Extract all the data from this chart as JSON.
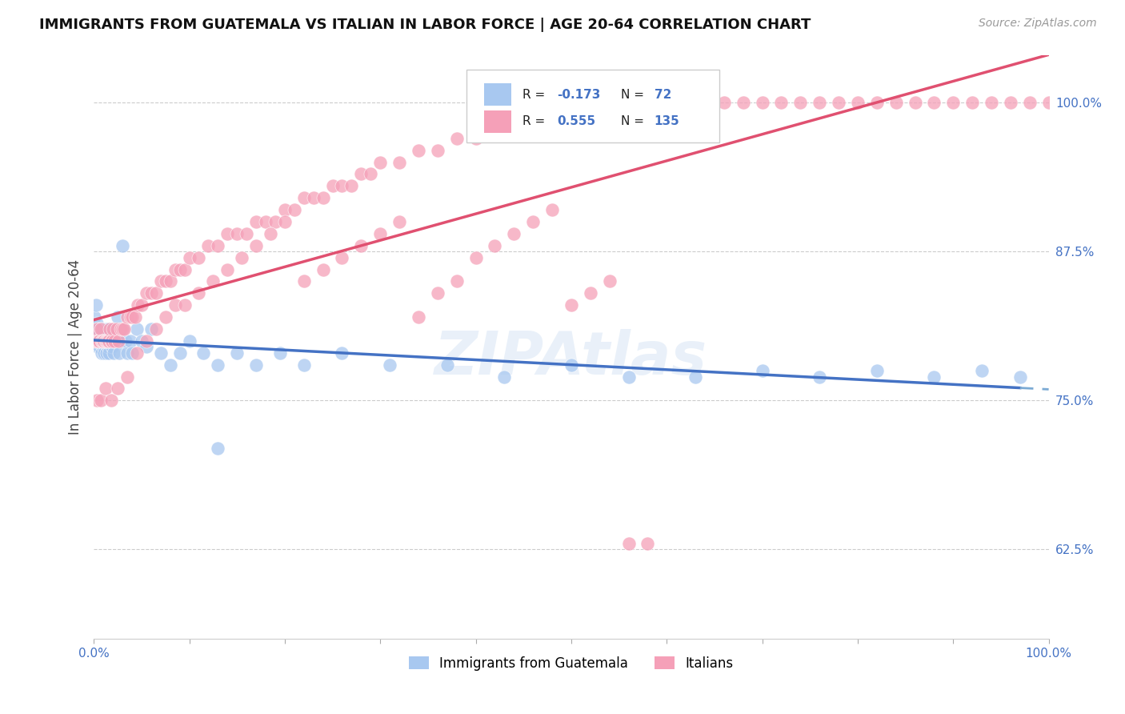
{
  "title": "IMMIGRANTS FROM GUATEMALA VS ITALIAN IN LABOR FORCE | AGE 20-64 CORRELATION CHART",
  "source": "Source: ZipAtlas.com",
  "ylabel": "In Labor Force | Age 20-64",
  "xlim": [
    0.0,
    1.0
  ],
  "ylim": [
    0.55,
    1.04
  ],
  "y_ticks": [
    0.625,
    0.75,
    0.875,
    1.0
  ],
  "y_tick_labels": [
    "62.5%",
    "75.0%",
    "87.5%",
    "100.0%"
  ],
  "guatemala_color": "#a8c8f0",
  "italian_color": "#f5a0b8",
  "guatemala_R": -0.173,
  "guatemala_N": 72,
  "italian_R": 0.555,
  "italian_N": 135,
  "legend_label_1": "Immigrants from Guatemala",
  "legend_label_2": "Italians",
  "guatemala_x": [
    0.001,
    0.002,
    0.002,
    0.003,
    0.003,
    0.004,
    0.004,
    0.005,
    0.005,
    0.006,
    0.006,
    0.007,
    0.007,
    0.008,
    0.008,
    0.009,
    0.009,
    0.01,
    0.01,
    0.011,
    0.011,
    0.012,
    0.013,
    0.013,
    0.014,
    0.015,
    0.015,
    0.016,
    0.017,
    0.018,
    0.019,
    0.02,
    0.021,
    0.022,
    0.023,
    0.025,
    0.027,
    0.029,
    0.031,
    0.033,
    0.035,
    0.038,
    0.04,
    0.045,
    0.05,
    0.055,
    0.06,
    0.07,
    0.08,
    0.09,
    0.1,
    0.115,
    0.13,
    0.15,
    0.17,
    0.195,
    0.22,
    0.26,
    0.31,
    0.37,
    0.43,
    0.5,
    0.56,
    0.63,
    0.7,
    0.76,
    0.82,
    0.88,
    0.93,
    0.97,
    0.03,
    0.13
  ],
  "guatemala_y": [
    0.82,
    0.83,
    0.8,
    0.815,
    0.8,
    0.81,
    0.795,
    0.8,
    0.81,
    0.805,
    0.795,
    0.8,
    0.81,
    0.79,
    0.8,
    0.8,
    0.81,
    0.8,
    0.795,
    0.8,
    0.79,
    0.8,
    0.81,
    0.79,
    0.8,
    0.795,
    0.81,
    0.79,
    0.8,
    0.8,
    0.795,
    0.8,
    0.79,
    0.8,
    0.81,
    0.82,
    0.79,
    0.8,
    0.81,
    0.8,
    0.79,
    0.8,
    0.79,
    0.81,
    0.8,
    0.795,
    0.81,
    0.79,
    0.78,
    0.79,
    0.8,
    0.79,
    0.78,
    0.79,
    0.78,
    0.79,
    0.78,
    0.79,
    0.78,
    0.78,
    0.77,
    0.78,
    0.77,
    0.77,
    0.775,
    0.77,
    0.775,
    0.77,
    0.775,
    0.77,
    0.88,
    0.71
  ],
  "italian_x": [
    0.001,
    0.002,
    0.003,
    0.004,
    0.005,
    0.006,
    0.007,
    0.008,
    0.009,
    0.01,
    0.011,
    0.012,
    0.013,
    0.014,
    0.015,
    0.016,
    0.017,
    0.018,
    0.019,
    0.02,
    0.022,
    0.024,
    0.026,
    0.028,
    0.03,
    0.032,
    0.035,
    0.038,
    0.04,
    0.043,
    0.046,
    0.05,
    0.055,
    0.06,
    0.065,
    0.07,
    0.075,
    0.08,
    0.085,
    0.09,
    0.095,
    0.1,
    0.11,
    0.12,
    0.13,
    0.14,
    0.15,
    0.16,
    0.17,
    0.18,
    0.19,
    0.2,
    0.21,
    0.22,
    0.23,
    0.24,
    0.25,
    0.26,
    0.27,
    0.28,
    0.29,
    0.3,
    0.32,
    0.34,
    0.36,
    0.38,
    0.4,
    0.42,
    0.44,
    0.46,
    0.48,
    0.5,
    0.52,
    0.54,
    0.56,
    0.58,
    0.6,
    0.62,
    0.64,
    0.66,
    0.68,
    0.7,
    0.72,
    0.74,
    0.76,
    0.78,
    0.8,
    0.82,
    0.84,
    0.86,
    0.88,
    0.9,
    0.92,
    0.94,
    0.96,
    0.98,
    1.0,
    0.003,
    0.007,
    0.012,
    0.018,
    0.025,
    0.035,
    0.045,
    0.055,
    0.065,
    0.075,
    0.085,
    0.095,
    0.11,
    0.125,
    0.14,
    0.155,
    0.17,
    0.185,
    0.2,
    0.22,
    0.24,
    0.26,
    0.28,
    0.3,
    0.32,
    0.34,
    0.36,
    0.38,
    0.4,
    0.42,
    0.44,
    0.46,
    0.48,
    0.5,
    0.52,
    0.54,
    0.56,
    0.58
  ],
  "italian_y": [
    0.8,
    0.8,
    0.81,
    0.8,
    0.8,
    0.8,
    0.81,
    0.8,
    0.8,
    0.8,
    0.8,
    0.8,
    0.8,
    0.8,
    0.8,
    0.8,
    0.81,
    0.8,
    0.8,
    0.81,
    0.8,
    0.81,
    0.8,
    0.81,
    0.81,
    0.81,
    0.82,
    0.82,
    0.82,
    0.82,
    0.83,
    0.83,
    0.84,
    0.84,
    0.84,
    0.85,
    0.85,
    0.85,
    0.86,
    0.86,
    0.86,
    0.87,
    0.87,
    0.88,
    0.88,
    0.89,
    0.89,
    0.89,
    0.9,
    0.9,
    0.9,
    0.91,
    0.91,
    0.92,
    0.92,
    0.92,
    0.93,
    0.93,
    0.93,
    0.94,
    0.94,
    0.95,
    0.95,
    0.96,
    0.96,
    0.97,
    0.97,
    0.98,
    0.98,
    0.99,
    0.99,
    1.0,
    1.0,
    1.0,
    1.0,
    1.0,
    1.0,
    1.0,
    1.0,
    1.0,
    1.0,
    1.0,
    1.0,
    1.0,
    1.0,
    1.0,
    1.0,
    1.0,
    1.0,
    1.0,
    1.0,
    1.0,
    1.0,
    1.0,
    1.0,
    1.0,
    1.0,
    0.75,
    0.75,
    0.76,
    0.75,
    0.76,
    0.77,
    0.79,
    0.8,
    0.81,
    0.82,
    0.83,
    0.83,
    0.84,
    0.85,
    0.86,
    0.87,
    0.88,
    0.89,
    0.9,
    0.85,
    0.86,
    0.87,
    0.88,
    0.89,
    0.9,
    0.82,
    0.84,
    0.85,
    0.87,
    0.88,
    0.89,
    0.9,
    0.91,
    0.83,
    0.84,
    0.85,
    0.63,
    0.63
  ]
}
